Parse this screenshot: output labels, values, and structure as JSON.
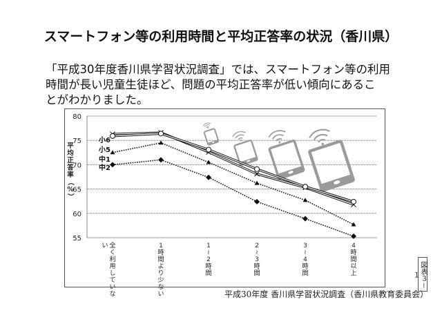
{
  "header": {
    "title": "スマートフォン等の利用時間と平均正答率の状況（香川県）"
  },
  "intro": {
    "lines": [
      "「平成30年度香川県学習状況調査」では、スマートフォン等の利用",
      "時間が長い児童生徒ほど、問題の平均正答率が低い傾向にあるこ",
      "とがわかりました。"
    ]
  },
  "chart_data": {
    "type": "line",
    "title": "",
    "xlabel": "",
    "ylabel": "平均正答率（%）",
    "ylim": [
      55,
      80
    ],
    "yticks": [
      55,
      60,
      65,
      70,
      75,
      80
    ],
    "grid": true,
    "legend_position": "left, inline near first category",
    "categories": [
      "全く利用していない",
      "1時間より少ない",
      "1~2時間",
      "2~3時間",
      "3~4時間",
      "4時間以上"
    ],
    "series": [
      {
        "name": "小6",
        "marker": "x",
        "line": "solid",
        "values": [
          76.3,
          76.6,
          72.6,
          68.1,
          65.3,
          61.8
        ]
      },
      {
        "name": "小5",
        "marker": "circle",
        "line": "solid",
        "values": [
          75.9,
          76.4,
          73.1,
          69.1,
          65.5,
          62.4
        ]
      },
      {
        "name": "中1",
        "marker": "triangle",
        "line": "dotted",
        "values": [
          72.5,
          74.5,
          70.5,
          66.2,
          62.7,
          57.7
        ]
      },
      {
        "name": "中2",
        "marker": "diamond",
        "line": "dotted",
        "values": [
          70.0,
          71.0,
          67.4,
          62.4,
          58.9,
          55.3
        ]
      }
    ]
  },
  "footer": {
    "source": "平成30年度 香川県学習状況調査（香川県教育委員会）",
    "figure_label": "図表３－１"
  },
  "decorations": {
    "device_icons": [
      "tablet-wifi-icon",
      "tablet-wifi-icon",
      "tablet-wifi-icon",
      "tablet-wifi-icon"
    ]
  }
}
